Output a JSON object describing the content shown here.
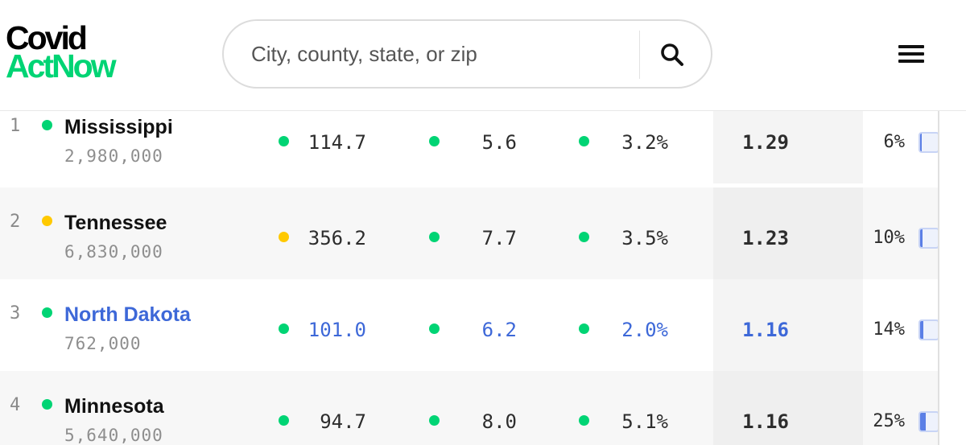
{
  "header": {
    "logo_line1": "Covid",
    "logo_line2": "ActNow",
    "search_placeholder": "City, county, state, or zip",
    "search_icon": "search-icon",
    "menu_icon": "hamburger-menu-icon"
  },
  "colors": {
    "green": "#00d474",
    "yellow": "#ffc900",
    "link": "#3d68d8"
  },
  "rows": [
    {
      "rank": "1",
      "status_color": "#00d474",
      "name": "Mississippi",
      "population": "2,980,000",
      "m1_color": "#00d474",
      "m1": "114.7",
      "m2_color": "#00d474",
      "m2": "5.6",
      "m3_color": "#00d474",
      "m3": "3.2%",
      "rt": "1.29",
      "pct": "6%",
      "pct_value": 0.06,
      "highlighted": false
    },
    {
      "rank": "2",
      "status_color": "#ffc900",
      "name": "Tennessee",
      "population": "6,830,000",
      "m1_color": "#ffc900",
      "m1": "356.2",
      "m2_color": "#00d474",
      "m2": "7.7",
      "m3_color": "#00d474",
      "m3": "3.5%",
      "rt": "1.23",
      "pct": "10%",
      "pct_value": 0.1,
      "highlighted": false
    },
    {
      "rank": "3",
      "status_color": "#00d474",
      "name": "North Dakota",
      "population": "762,000",
      "m1_color": "#00d474",
      "m1": "101.0",
      "m2_color": "#00d474",
      "m2": "6.2",
      "m3_color": "#00d474",
      "m3": "2.0%",
      "rt": "1.16",
      "pct": "14%",
      "pct_value": 0.14,
      "highlighted": true
    },
    {
      "rank": "4",
      "status_color": "#00d474",
      "name": "Minnesota",
      "population": "5,640,000",
      "m1_color": "#00d474",
      "m1": "94.7",
      "m2_color": "#00d474",
      "m2": "8.0",
      "m3_color": "#00d474",
      "m3": "5.1%",
      "rt": "1.16",
      "pct": "25%",
      "pct_value": 0.25,
      "highlighted": false
    }
  ]
}
